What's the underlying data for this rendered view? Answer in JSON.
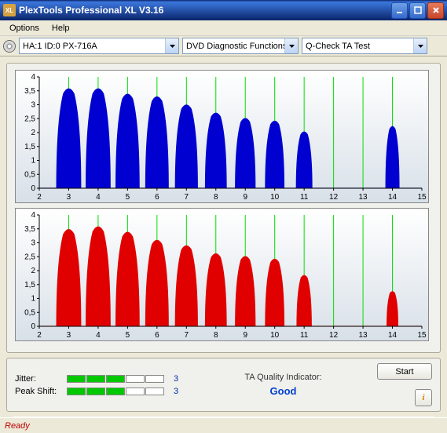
{
  "window": {
    "title": "PlexTools Professional XL V3.16"
  },
  "menu": {
    "options": "Options",
    "help": "Help"
  },
  "toolbar": {
    "drive": "HA:1 ID:0  PX-716A",
    "function": "DVD Diagnostic Functions",
    "test": "Q-Check TA Test"
  },
  "chart_top": {
    "type": "histogram-peaks",
    "color": "#0000d0",
    "grid_color": "#00e000",
    "bg_gradient": [
      "#ffffff",
      "#d8e0e8"
    ],
    "ylim": [
      0,
      4
    ],
    "ytick_step": 0.5,
    "xlim": [
      2,
      15
    ],
    "xtick_step": 1,
    "yticks": [
      "0",
      "0,5",
      "1",
      "1,5",
      "2",
      "2,5",
      "3",
      "3,5",
      "4"
    ],
    "xticks": [
      "2",
      "3",
      "4",
      "5",
      "6",
      "7",
      "8",
      "9",
      "10",
      "11",
      "12",
      "13",
      "14",
      "15"
    ],
    "peaks": [
      {
        "x": 3,
        "h": 3.7,
        "w": 0.85
      },
      {
        "x": 4,
        "h": 3.7,
        "w": 0.85
      },
      {
        "x": 5,
        "h": 3.5,
        "w": 0.82
      },
      {
        "x": 6,
        "h": 3.4,
        "w": 0.8
      },
      {
        "x": 7,
        "h": 3.1,
        "w": 0.78
      },
      {
        "x": 8,
        "h": 2.8,
        "w": 0.74
      },
      {
        "x": 9,
        "h": 2.6,
        "w": 0.7
      },
      {
        "x": 10,
        "h": 2.5,
        "w": 0.66
      },
      {
        "x": 11,
        "h": 2.1,
        "w": 0.56
      },
      {
        "x": 14,
        "h": 2.3,
        "w": 0.48
      }
    ],
    "axis_fontsize": 10
  },
  "chart_bottom": {
    "type": "histogram-peaks",
    "color": "#e00000",
    "grid_color": "#00e000",
    "bg_gradient": [
      "#ffffff",
      "#d8e0e8"
    ],
    "ylim": [
      0,
      4
    ],
    "ytick_step": 0.5,
    "xlim": [
      2,
      15
    ],
    "xtick_step": 1,
    "yticks": [
      "0",
      "0,5",
      "1",
      "1,5",
      "2",
      "2,5",
      "3",
      "3,5",
      "4"
    ],
    "xticks": [
      "2",
      "3",
      "4",
      "5",
      "6",
      "7",
      "8",
      "9",
      "10",
      "11",
      "12",
      "13",
      "14",
      "15"
    ],
    "peaks": [
      {
        "x": 3,
        "h": 3.6,
        "w": 0.85
      },
      {
        "x": 4,
        "h": 3.7,
        "w": 0.85
      },
      {
        "x": 5,
        "h": 3.5,
        "w": 0.82
      },
      {
        "x": 6,
        "h": 3.2,
        "w": 0.8
      },
      {
        "x": 7,
        "h": 3.0,
        "w": 0.78
      },
      {
        "x": 8,
        "h": 2.7,
        "w": 0.74
      },
      {
        "x": 9,
        "h": 2.6,
        "w": 0.7
      },
      {
        "x": 10,
        "h": 2.5,
        "w": 0.66
      },
      {
        "x": 11,
        "h": 1.9,
        "w": 0.52
      },
      {
        "x": 14,
        "h": 1.3,
        "w": 0.4
      }
    ],
    "axis_fontsize": 10
  },
  "metrics": {
    "jitter_label": "Jitter:",
    "jitter_value": "3",
    "jitter_bars": 3,
    "jitter_total": 5,
    "peakshift_label": "Peak Shift:",
    "peakshift_value": "3",
    "peakshift_bars": 3,
    "peakshift_total": 5,
    "bar_on_color": "#00c800",
    "value_color": "#0030aa"
  },
  "quality": {
    "label": "TA Quality Indicator:",
    "value": "Good",
    "value_color": "#0040d0"
  },
  "buttons": {
    "start": "Start"
  },
  "status": {
    "text": "Ready",
    "color": "#c00000"
  }
}
